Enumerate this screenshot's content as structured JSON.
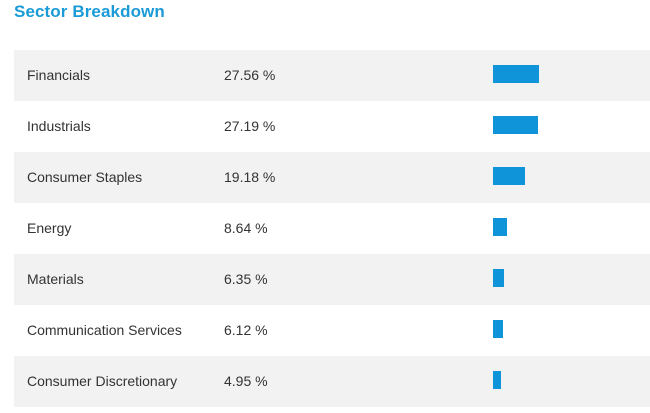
{
  "title": "Sector Breakdown",
  "colors": {
    "title": "#1a9bd7",
    "bar": "#0f94da",
    "row_stripe": "#f2f2f2",
    "text": "#333333"
  },
  "sectors": [
    {
      "name": "Financials",
      "percent_label": "27.56 %",
      "value": 27.56
    },
    {
      "name": "Industrials",
      "percent_label": "27.19 %",
      "value": 27.19
    },
    {
      "name": "Consumer Staples",
      "percent_label": "19.18 %",
      "value": 19.18
    },
    {
      "name": "Energy",
      "percent_label": "8.64 %",
      "value": 8.64
    },
    {
      "name": "Materials",
      "percent_label": "6.35 %",
      "value": 6.35
    },
    {
      "name": "Communication Services",
      "percent_label": "6.12 %",
      "value": 6.12
    },
    {
      "name": "Consumer Discretionary",
      "percent_label": "4.95 %",
      "value": 4.95
    }
  ]
}
